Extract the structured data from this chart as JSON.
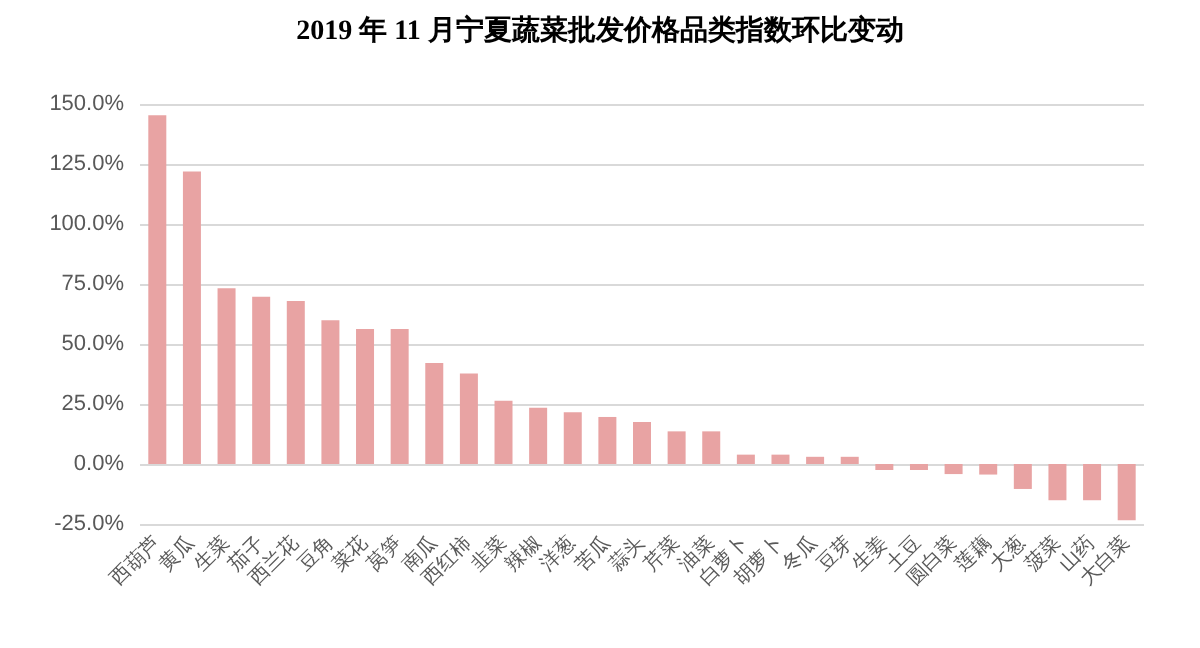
{
  "chart_data": {
    "type": "bar",
    "title": "2019 年 11 月宁夏蔬菜批发价格品类指数环比变动",
    "categories": [
      "西葫芦",
      "黄瓜",
      "生菜",
      "茄子",
      "西兰花",
      "豆角",
      "菜花",
      "莴笋",
      "南瓜",
      "西红柿",
      "韭菜",
      "辣椒",
      "洋葱",
      "苦瓜",
      "蒜头",
      "芹菜",
      "油菜",
      "白萝卜",
      "胡萝卜",
      "冬瓜",
      "豆芽",
      "生姜",
      "土豆",
      "圆白菜",
      "莲藕",
      "大葱",
      "菠菜",
      "山药",
      "大白菜"
    ],
    "values": [
      145.3,
      121.9,
      73.2,
      69.7,
      67.9,
      59.9,
      56.3,
      56.3,
      42.1,
      37.7,
      26.4,
      23.4,
      21.6,
      19.6,
      17.5,
      13.6,
      13.6,
      3.9,
      3.9,
      3.0,
      3.0,
      -2.5,
      -2.5,
      -4.2,
      -4.4,
      -10.4,
      -15.1,
      -15.1,
      -23.4
    ],
    "color": "#e8a3a3",
    "ylim": [
      -25,
      150
    ],
    "yticks": [
      {
        "value": -25,
        "label": "-25.0%"
      },
      {
        "value": 0,
        "label": "0.0%"
      },
      {
        "value": 25,
        "label": "25.0%"
      },
      {
        "value": 50,
        "label": "50.0%"
      },
      {
        "value": 75,
        "label": "75.0%"
      },
      {
        "value": 100,
        "label": "100.0%"
      },
      {
        "value": 125,
        "label": "125.0%"
      },
      {
        "value": 150,
        "label": "150.0%"
      }
    ],
    "grid": "y"
  }
}
